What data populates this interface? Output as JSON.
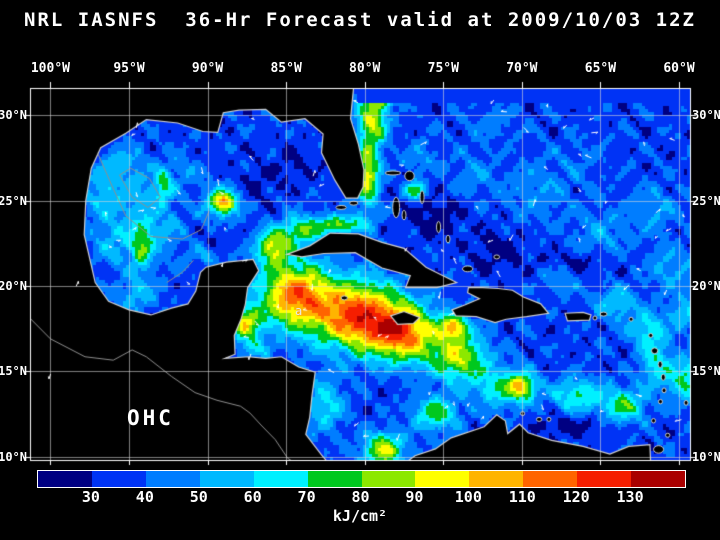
{
  "header": {
    "title": "NRL IASNFS  36-Hr Forecast valid at 2009/10/03 12Z"
  },
  "map": {
    "region_label": "OHC",
    "point_label": "a"
  },
  "axes": {
    "lon_ticks": [
      {
        "label": "100°W",
        "lon": -100
      },
      {
        "label": "95°W",
        "lon": -95
      },
      {
        "label": "90°W",
        "lon": -90
      },
      {
        "label": "85°W",
        "lon": -85
      },
      {
        "label": "80°W",
        "lon": -80
      },
      {
        "label": "75°W",
        "lon": -75
      },
      {
        "label": "70°W",
        "lon": -70
      },
      {
        "label": "65°W",
        "lon": -65
      },
      {
        "label": "60°W",
        "lon": -60
      }
    ],
    "lat_ticks": [
      {
        "label": "30°N",
        "lat": 30
      },
      {
        "label": "25°N",
        "lat": 25
      },
      {
        "label": "20°N",
        "lat": 20
      },
      {
        "label": "15°N",
        "lat": 15
      },
      {
        "label": "10°N",
        "lat": 10
      }
    ]
  },
  "colorbar": {
    "tick_values": [
      30,
      40,
      50,
      60,
      70,
      80,
      90,
      100,
      110,
      120,
      130
    ],
    "units": "kJ/cm²"
  },
  "chart_data": {
    "type": "heatmap",
    "title": "NRL IASNFS 36-Hr Forecast valid at 2009/10/03 12Z",
    "variable_label": "OHC",
    "units": "kJ/cm²",
    "lon_range": [
      -101.3,
      -59.3
    ],
    "lat_range": [
      9.8,
      31.6
    ],
    "colormap": {
      "boundaries": [
        30,
        40,
        50,
        60,
        70,
        80,
        90,
        100,
        110,
        120,
        130
      ],
      "colors": [
        "#000082",
        "#0033f5",
        "#007dff",
        "#00b9ff",
        "#00f0ff",
        "#00c81e",
        "#8ce800",
        "#ffff00",
        "#ffb400",
        "#ff6400",
        "#f51e00",
        "#aa0000"
      ]
    },
    "base_value": 36,
    "north_dark_band": {
      "lat_min": 30.7,
      "lon_min": -80.4,
      "value": 33
    },
    "field_blobs_lon_lat_sx_sy_amp": [
      [
        -94.5,
        25.5,
        2.5,
        2.0,
        14
      ],
      [
        -93.5,
        23.0,
        2.0,
        1.8,
        16
      ],
      [
        -96.0,
        22.5,
        1.5,
        1.5,
        15
      ],
      [
        -89.0,
        24.9,
        1.05,
        0.8,
        60
      ],
      [
        -89.0,
        24.9,
        0.45,
        0.38,
        20
      ],
      [
        -91.5,
        26.8,
        1.2,
        1.0,
        10
      ],
      [
        -87.0,
        25.8,
        1.3,
        1.1,
        -8
      ],
      [
        -94.5,
        19.5,
        1.3,
        1.0,
        20
      ],
      [
        -90.0,
        21.8,
        1.2,
        0.8,
        12
      ],
      [
        -85.8,
        22.3,
        1.1,
        1.0,
        55
      ],
      [
        -84.0,
        23.3,
        1.3,
        0.8,
        40
      ],
      [
        -81.5,
        23.6,
        1.6,
        0.55,
        45
      ],
      [
        -79.8,
        26.5,
        0.75,
        1.8,
        58
      ],
      [
        -79.5,
        29.5,
        0.9,
        1.3,
        52
      ],
      [
        -79.2,
        31.2,
        1.2,
        0.9,
        42
      ],
      [
        -84.5,
        19.5,
        2.2,
        1.9,
        75
      ],
      [
        -80.5,
        18.3,
        2.8,
        2.0,
        82
      ],
      [
        -77.5,
        17.2,
        2.2,
        1.6,
        70
      ],
      [
        -74.0,
        15.8,
        1.8,
        1.4,
        52
      ],
      [
        -71.5,
        14.0,
        1.6,
        1.2,
        30
      ],
      [
        -70.0,
        14.1,
        0.9,
        0.8,
        55
      ],
      [
        -75.5,
        12.5,
        1.4,
        1.0,
        40
      ],
      [
        -66.5,
        13.6,
        1.6,
        1.0,
        35
      ],
      [
        -63.5,
        13.0,
        1.3,
        1.0,
        40
      ],
      [
        -61.5,
        15.5,
        1.0,
        1.4,
        30
      ],
      [
        -75.5,
        24.0,
        1.6,
        1.2,
        -13
      ],
      [
        -71.5,
        22.0,
        1.6,
        1.2,
        -11
      ],
      [
        -69.0,
        25.5,
        2.2,
        1.8,
        12
      ],
      [
        -65.0,
        23.0,
        1.8,
        1.5,
        14
      ],
      [
        -61.5,
        24.5,
        1.6,
        1.4,
        14
      ],
      [
        -60.5,
        21.0,
        1.4,
        1.2,
        18
      ],
      [
        -64.0,
        19.0,
        1.4,
        1.0,
        24
      ],
      [
        -67.5,
        20.5,
        1.2,
        0.9,
        16
      ],
      [
        -62.0,
        17.5,
        1.2,
        1.0,
        28
      ],
      [
        -59.5,
        14.5,
        1.2,
        1.2,
        38
      ],
      [
        -59.5,
        18.5,
        1.2,
        1.0,
        22
      ],
      [
        -73.0,
        26.5,
        1.5,
        1.3,
        10
      ],
      [
        -76.5,
        27.5,
        1.3,
        1.0,
        12
      ],
      [
        -72.0,
        29.5,
        1.8,
        1.2,
        8
      ],
      [
        -66.0,
        27.5,
        2.0,
        1.5,
        6
      ],
      [
        -66.5,
        21.3,
        2.0,
        0.8,
        -12
      ],
      [
        -78.8,
        10.4,
        1.3,
        1.0,
        55
      ],
      [
        -82.5,
        13.0,
        1.2,
        1.5,
        28
      ],
      [
        -89.5,
        22.6,
        0.8,
        0.5,
        -12
      ],
      [
        -84.5,
        27.0,
        1.3,
        1.2,
        -8
      ],
      [
        -96.8,
        25.5,
        1.2,
        1.5,
        15
      ],
      [
        -95.5,
        27.3,
        1.3,
        1.0,
        13
      ],
      [
        -76.8,
        25.6,
        0.6,
        0.5,
        45
      ],
      [
        -87.0,
        16.3,
        0.8,
        0.6,
        25
      ],
      [
        -87.6,
        17.8,
        1.0,
        1.0,
        55
      ],
      [
        -74.3,
        17.6,
        0.9,
        0.7,
        55
      ],
      [
        -94.2,
        22.2,
        0.6,
        1.3,
        32
      ],
      [
        -92.8,
        25.9,
        0.5,
        0.9,
        30
      ],
      [
        -67.0,
        11.8,
        2.0,
        0.6,
        -14
      ]
    ],
    "land": {
      "north_central_america": [
        [
          -101.4,
          31.7
        ],
        [
          -80.7,
          31.7
        ],
        [
          -80.9,
          29.8
        ],
        [
          -80.4,
          28.3
        ],
        [
          -80.05,
          26.8
        ],
        [
          -80.1,
          25.8
        ],
        [
          -80.45,
          25.15
        ],
        [
          -81.2,
          25.15
        ],
        [
          -81.9,
          26.2
        ],
        [
          -82.75,
          27.8
        ],
        [
          -82.65,
          28.9
        ],
        [
          -83.8,
          29.8
        ],
        [
          -85.3,
          29.6
        ],
        [
          -86.3,
          30.35
        ],
        [
          -88.0,
          30.3
        ],
        [
          -89.0,
          30.15
        ],
        [
          -89.35,
          29.0
        ],
        [
          -90.3,
          29.05
        ],
        [
          -91.9,
          29.55
        ],
        [
          -93.9,
          29.75
        ],
        [
          -95.2,
          28.95
        ],
        [
          -96.8,
          28.1
        ],
        [
          -97.4,
          26.9
        ],
        [
          -97.75,
          25.0
        ],
        [
          -97.85,
          23.0
        ],
        [
          -97.4,
          21.2
        ],
        [
          -97.15,
          20.2
        ],
        [
          -96.3,
          19.1
        ],
        [
          -95.0,
          18.6
        ],
        [
          -93.6,
          18.3
        ],
        [
          -92.3,
          18.7
        ],
        [
          -91.25,
          18.95
        ],
        [
          -90.75,
          19.7
        ],
        [
          -90.45,
          20.8
        ],
        [
          -90.1,
          21.1
        ],
        [
          -88.8,
          21.4
        ],
        [
          -87.1,
          21.55
        ],
        [
          -86.75,
          20.9
        ],
        [
          -87.45,
          19.9
        ],
        [
          -87.6,
          18.9
        ],
        [
          -87.85,
          18.1
        ],
        [
          -88.3,
          17.1
        ],
        [
          -88.25,
          16.0
        ],
        [
          -88.9,
          15.75
        ],
        [
          -87.4,
          15.85
        ],
        [
          -86.3,
          15.75
        ],
        [
          -85.3,
          15.85
        ],
        [
          -84.2,
          15.25
        ],
        [
          -83.15,
          14.95
        ],
        [
          -83.35,
          13.6
        ],
        [
          -83.5,
          12.3
        ],
        [
          -83.75,
          11.3
        ],
        [
          -82.75,
          10.1
        ],
        [
          -82.2,
          9.5
        ],
        [
          -101.4,
          9.5
        ]
      ],
      "south_america": [
        [
          -77.6,
          9.5
        ],
        [
          -76.8,
          10.05
        ],
        [
          -75.5,
          10.45
        ],
        [
          -74.5,
          11.1
        ],
        [
          -72.4,
          11.75
        ],
        [
          -71.6,
          12.45
        ],
        [
          -71.05,
          12.1
        ],
        [
          -70.9,
          11.35
        ],
        [
          -70.15,
          11.9
        ],
        [
          -69.6,
          11.4
        ],
        [
          -68.1,
          10.95
        ],
        [
          -66.1,
          10.6
        ],
        [
          -64.4,
          10.15
        ],
        [
          -63.2,
          10.6
        ],
        [
          -61.85,
          10.7
        ],
        [
          -61.8,
          9.5
        ]
      ],
      "cuba": [
        [
          -84.95,
          21.85
        ],
        [
          -83.5,
          22.35
        ],
        [
          -82.2,
          23.1
        ],
        [
          -80.4,
          23.05
        ],
        [
          -78.9,
          22.55
        ],
        [
          -77.5,
          22.2
        ],
        [
          -76.1,
          21.1
        ],
        [
          -74.15,
          20.2
        ],
        [
          -75.4,
          19.9
        ],
        [
          -77.4,
          19.9
        ],
        [
          -77.1,
          20.6
        ],
        [
          -78.9,
          21.05
        ],
        [
          -80.6,
          21.95
        ],
        [
          -82.6,
          21.9
        ],
        [
          -84.0,
          21.7
        ]
      ],
      "hispaniola": [
        [
          -73.4,
          19.9
        ],
        [
          -72.5,
          19.9
        ],
        [
          -71.5,
          19.85
        ],
        [
          -70.6,
          19.75
        ],
        [
          -69.9,
          19.35
        ],
        [
          -68.8,
          18.95
        ],
        [
          -68.3,
          18.4
        ],
        [
          -69.7,
          18.2
        ],
        [
          -71.0,
          18.05
        ],
        [
          -71.7,
          17.85
        ],
        [
          -72.9,
          18.2
        ],
        [
          -74.2,
          18.25
        ],
        [
          -74.45,
          18.6
        ],
        [
          -73.6,
          18.9
        ],
        [
          -72.7,
          19.25
        ],
        [
          -73.45,
          19.6
        ]
      ],
      "jamaica": [
        [
          -78.35,
          18.25
        ],
        [
          -77.5,
          18.5
        ],
        [
          -76.5,
          18.15
        ],
        [
          -76.9,
          17.8
        ],
        [
          -77.9,
          17.75
        ]
      ],
      "puerto_rico": [
        [
          -67.25,
          18.4
        ],
        [
          -66.1,
          18.45
        ],
        [
          -65.6,
          18.3
        ],
        [
          -65.7,
          18.0
        ],
        [
          -67.1,
          17.95
        ]
      ]
    },
    "islands_lon_lat_rx_ry": [
      [
        -78.2,
        26.62,
        0.5,
        0.1
      ],
      [
        -77.15,
        26.45,
        0.3,
        0.28
      ],
      [
        -78.0,
        24.6,
        0.22,
        0.6
      ],
      [
        -77.5,
        24.15,
        0.1,
        0.28
      ],
      [
        -76.35,
        25.2,
        0.1,
        0.38
      ],
      [
        -75.3,
        23.45,
        0.13,
        0.33
      ],
      [
        -74.7,
        22.75,
        0.1,
        0.22
      ],
      [
        -73.45,
        21.0,
        0.33,
        0.17
      ],
      [
        -71.6,
        21.7,
        0.18,
        0.09
      ],
      [
        -81.3,
        19.3,
        0.2,
        0.08
      ],
      [
        -81.5,
        24.6,
        0.33,
        0.07
      ],
      [
        -80.7,
        24.85,
        0.26,
        0.07
      ],
      [
        -64.8,
        18.35,
        0.22,
        0.07
      ],
      [
        -63.05,
        18.05,
        0.12,
        0.07
      ],
      [
        -61.8,
        17.1,
        0.13,
        0.11
      ],
      [
        -61.55,
        16.2,
        0.2,
        0.17
      ],
      [
        -61.2,
        15.4,
        0.11,
        0.18
      ],
      [
        -61.0,
        14.65,
        0.12,
        0.18
      ],
      [
        -60.95,
        13.88,
        0.09,
        0.14
      ],
      [
        -61.18,
        13.22,
        0.09,
        0.13
      ],
      [
        -61.62,
        12.1,
        0.11,
        0.13
      ],
      [
        -59.55,
        13.15,
        0.11,
        0.14
      ],
      [
        -61.3,
        10.42,
        0.32,
        0.22
      ],
      [
        -60.72,
        11.25,
        0.14,
        0.07
      ],
      [
        -69.95,
        12.52,
        0.11,
        0.08
      ],
      [
        -68.9,
        12.18,
        0.17,
        0.09
      ],
      [
        -68.28,
        12.18,
        0.08,
        0.11
      ],
      [
        -65.35,
        18.12,
        0.12,
        0.05
      ]
    ],
    "gray_lines": [
      [
        [
          -101.4,
          18.2
        ],
        [
          -100.0,
          16.9
        ],
        [
          -97.8,
          15.85
        ],
        [
          -96.0,
          15.65
        ],
        [
          -94.8,
          16.25
        ],
        [
          -93.9,
          15.85
        ],
        [
          -92.3,
          14.7
        ],
        [
          -90.8,
          13.75
        ],
        [
          -89.4,
          13.3
        ],
        [
          -87.9,
          12.95
        ],
        [
          -87.3,
          12.55
        ],
        [
          -86.6,
          11.85
        ],
        [
          -85.7,
          11.0
        ],
        [
          -84.9,
          9.9
        ],
        [
          -84.2,
          9.5
        ]
      ],
      [
        [
          -97.0,
          27.8
        ],
        [
          -96.1,
          25.9
        ],
        [
          -95.2,
          24.1
        ],
        [
          -93.6,
          22.9
        ],
        [
          -91.6,
          22.75
        ],
        [
          -90.4,
          23.3
        ],
        [
          -89.9,
          24.4
        ]
      ],
      [
        [
          -95.6,
          26.5
        ],
        [
          -94.8,
          25.2
        ],
        [
          -93.8,
          24.6
        ],
        [
          -93.0,
          25.2
        ],
        [
          -93.7,
          26.3
        ],
        [
          -94.9,
          26.9
        ],
        [
          -95.6,
          26.5
        ]
      ],
      [
        [
          -92.6,
          20.2
        ],
        [
          -91.6,
          20.8
        ],
        [
          -90.9,
          21.5
        ]
      ]
    ]
  }
}
